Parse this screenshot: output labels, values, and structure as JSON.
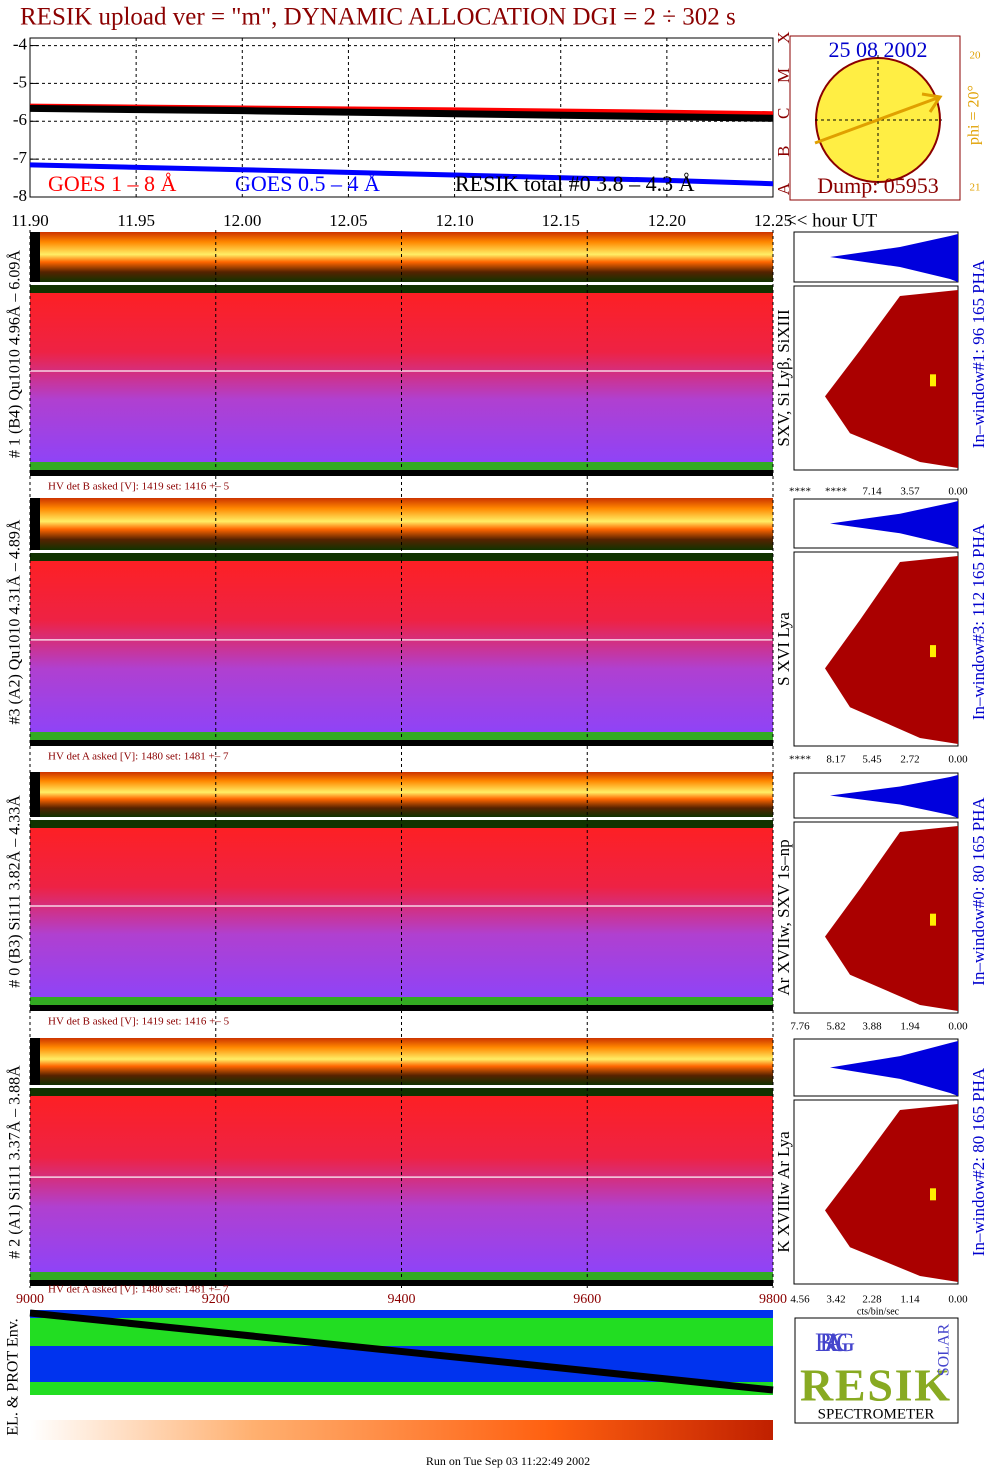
{
  "title": "RESIK upload ver = \"m\", DYNAMIC ALLOCATION  DGI =   2 ÷ 302 s",
  "chart_data": [
    {
      "type": "line",
      "x_label": "<< hour UT",
      "xlim": [
        11.9,
        12.25
      ],
      "xticks": [
        {
          "value": 11.9,
          "label": "11.90"
        },
        11.95,
        {
          "value": 12.0,
          "label": "12.00"
        },
        12.05,
        {
          "value": 12.1,
          "label": "12.10"
        },
        12.15,
        {
          "value": 12.2,
          "label": "12.20"
        },
        12.25
      ],
      "ylim": [
        -8,
        -3.8
      ],
      "yticks": [
        -4,
        -5,
        -6,
        -7,
        -8
      ],
      "grid": true,
      "x": [
        11.9,
        12.0,
        12.1,
        12.2,
        12.25
      ],
      "series": [
        {
          "name": "GOES 1 – 8 Å",
          "color": "#ff0000",
          "values": [
            -5.6,
            -5.65,
            -5.7,
            -5.76,
            -5.8
          ]
        },
        {
          "name": "GOES 0.5 – 4 Å",
          "color": "#0000ff",
          "values": [
            -7.15,
            -7.28,
            -7.42,
            -7.56,
            -7.65
          ]
        },
        {
          "name": "RESIK total #0  3.8 – 4.3 Å",
          "color": "#000000",
          "values": [
            -5.66,
            -5.72,
            -5.8,
            -5.88,
            -5.92
          ]
        }
      ]
    },
    {
      "type": "strip",
      "xlim": [
        9000,
        9800
      ],
      "xticks": [
        9000,
        9200,
        9400,
        9600,
        9800
      ],
      "grid": true,
      "label": "EL. & PROT Env."
    }
  ],
  "sun": {
    "date": "25 08 2002",
    "dump": "Dump: 05953",
    "phi": "phi = 20°",
    "phi_top": "20",
    "phi_bottom": "21",
    "goes_classes": [
      "A",
      "B",
      "C",
      "M",
      "X"
    ]
  },
  "panels": [
    {
      "label": "# 1 (B4) Qu1010 4.96Å – 6.09Å",
      "hv": "HV det B asked [V]:  1419 set:  1416 +–    5",
      "lines": "SXV, Si Lyβ, SiXIII",
      "window": "In–window#1:   96 165  PHA",
      "pha_ticks": [
        "****",
        "****",
        "7.14",
        "3.57",
        "0.00"
      ]
    },
    {
      "label": "#3 (A2) Qu1010  4.31Å – 4.89Å",
      "hv": "HV det A asked [V]:  1480 set:  1481 +–    7",
      "lines": "S XVI Lya",
      "window": "In–window#3:  112 165 PHA",
      "pha_ticks": [
        "****",
        "8.17",
        "5.45",
        "2.72",
        "0.00"
      ]
    },
    {
      "label": "# 0 (B3) Si111  3.82Å – 4.33Å",
      "hv": "HV det B asked [V]:  1419 set:  1416 +–    5",
      "lines": "Ar XVIIw,  SXV 1s–np",
      "window": "In–window#0:   80 165  PHA",
      "pha_ticks": [
        "7.76",
        "5.82",
        "3.88",
        "1.94",
        "0.00"
      ]
    },
    {
      "label": "# 2 (A1) Si111  3.37Å – 3.88Å",
      "hv": "HV det A asked [V]:  1480 set:  1481 +–    7",
      "lines": "K XVIIIw  Ar Lya",
      "window": "In–window#2:   80 165  PHA",
      "pha_ticks": [
        "4.56",
        "3.42",
        "2.28",
        "1.14",
        "0.00"
      ]
    }
  ],
  "pha_unit": "cts/bin/sec",
  "logo": {
    "bragg": "BRAGG",
    "resik": "RESIK",
    "solar": "SOLAR",
    "spectrometer": "SPECTROMETER"
  },
  "footer": "Run on Tue Sep 03 11:22:49 2002"
}
